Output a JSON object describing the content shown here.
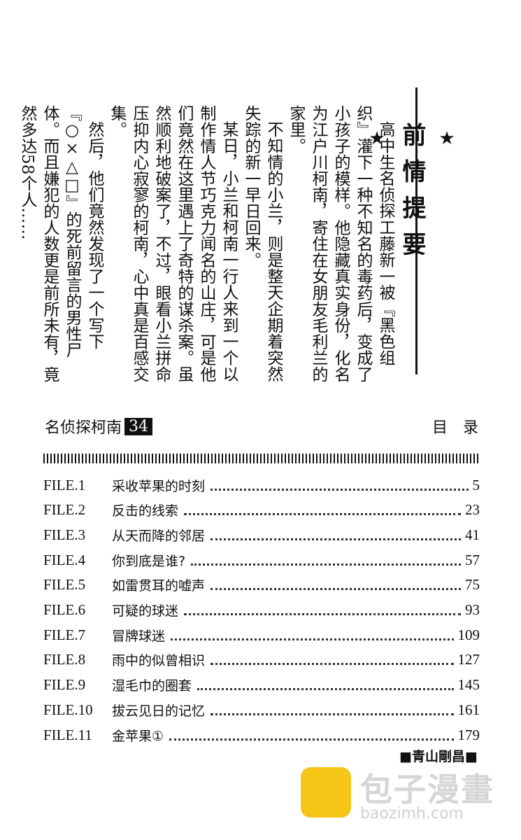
{
  "summary": {
    "title": "前情提要",
    "star": "★",
    "paragraphs": [
      "高中生名侦探工藤新一被『黑色组织』灌下一种不知名的毒药后，变成了小孩子的模样。他隐藏真实身份，化名为江户川柯南，寄住在女朋友毛利兰的家里。",
      "不知情的小兰，则是整天企期着突然失踪的新一早日回来。",
      "某日，小兰和柯南一行人来到一个以制作情人节巧克力闻名的山庄，可是他们竟然在这里遇上了奇特的谋杀案。虽然顺利地破案了，不过，眼看小兰拼命压抑内心寂寥的柯南，心中真是百感交集。",
      "然后，他们竟然发现了一个写下『○×△□』的死前留言的男性尸体。而且嫌犯的人数更是前所未有，竟然多达58个人……"
    ]
  },
  "toc": {
    "series": "名侦探柯南",
    "volume": "34",
    "heading": "目　录",
    "entries": [
      {
        "file": "FILE.1",
        "title": "采收苹果的时刻",
        "page": "5"
      },
      {
        "file": "FILE.2",
        "title": "反击的线索",
        "page": "23"
      },
      {
        "file": "FILE.3",
        "title": "从天而降的邻居",
        "page": "41"
      },
      {
        "file": "FILE.4",
        "title": "你到底是谁?",
        "page": "57"
      },
      {
        "file": "FILE.5",
        "title": "如雷贯耳的嘘声",
        "page": "75"
      },
      {
        "file": "FILE.6",
        "title": "可疑的球迷",
        "page": "93"
      },
      {
        "file": "FILE.7",
        "title": "冒牌球迷",
        "page": "109"
      },
      {
        "file": "FILE.8",
        "title": "雨中的似曾相识",
        "page": "127"
      },
      {
        "file": "FILE.9",
        "title": "湿毛巾的圈套",
        "page": "145"
      },
      {
        "file": "FILE.10",
        "title": "拔云见日的记忆",
        "page": "161"
      },
      {
        "file": "FILE.11",
        "title": "金苹果①",
        "page": "179"
      }
    ],
    "author": "■青山剛昌■"
  },
  "watermark": {
    "name": "包子漫畫",
    "url": "baozimh.com"
  }
}
